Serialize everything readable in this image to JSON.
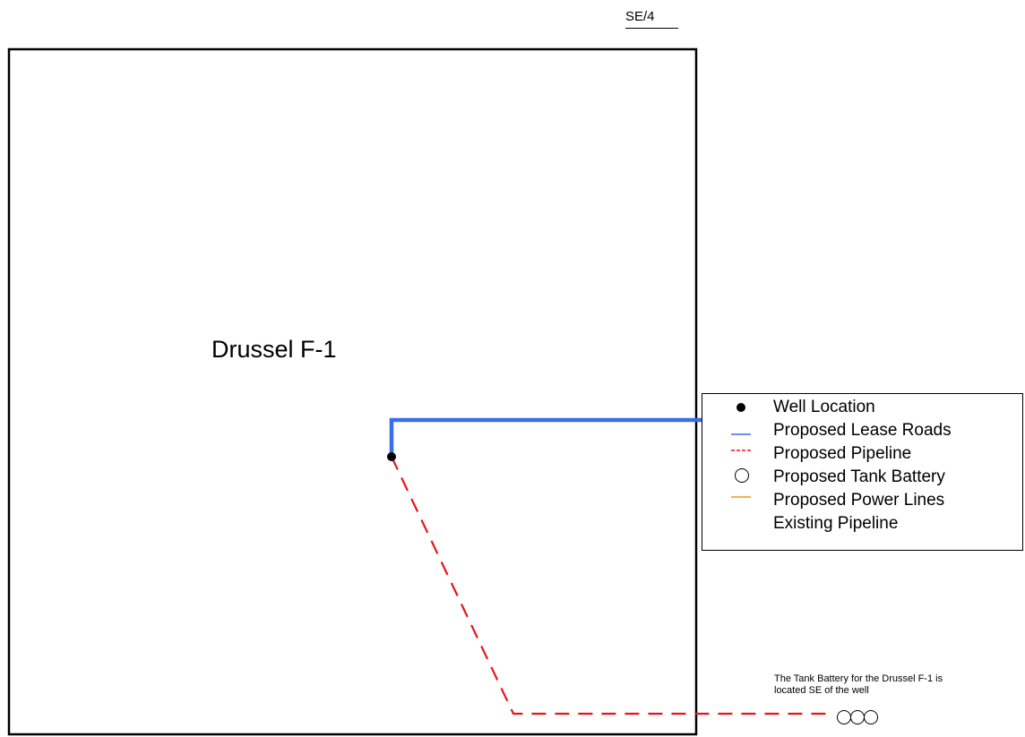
{
  "section_label": "SE/4",
  "well_name": "Drussel F-1",
  "legend": [
    {
      "symbol": "well-location",
      "label": "Well Location",
      "color": "#000000"
    },
    {
      "symbol": "lease-road",
      "label": "Proposed Lease Roads",
      "color": "#3a6ee8"
    },
    {
      "symbol": "proposed-pipeline",
      "label": "Proposed Pipeline",
      "color": "#e8141b"
    },
    {
      "symbol": "tank-battery",
      "label": "Proposed Tank Battery",
      "color": "#000000"
    },
    {
      "symbol": "power-line",
      "label": "Proposed Power Lines",
      "color": "#f0961e"
    },
    {
      "symbol": "existing-pipeline",
      "label": "Existing Pipeline",
      "color": "#7b3fb0"
    }
  ],
  "note": {
    "line1": "The Tank Battery for the Drussel F-1 is",
    "line2": "located SE of the well"
  },
  "colors": {
    "boundary": "#000000",
    "lease_road": "#3a6ee8",
    "proposed_pipeline": "#e8141b"
  }
}
